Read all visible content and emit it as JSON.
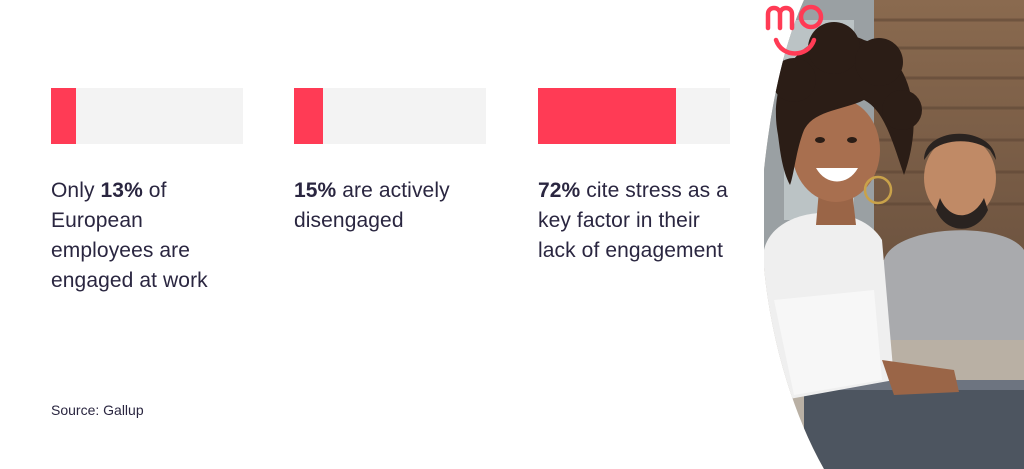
{
  "stats": [
    {
      "value": "13%",
      "fraction": 0.13,
      "prefix": "Only ",
      "suffix": " of European employees are engaged at work"
    },
    {
      "value": "15%",
      "fraction": 0.15,
      "prefix": "",
      "suffix": " are actively disengaged"
    },
    {
      "value": "72%",
      "fraction": 0.72,
      "prefix": "",
      "suffix": " cite stress as a key factor in their lack of engagement"
    }
  ],
  "source": "Source: Gallup",
  "colors": {
    "accent": "#ff3b55",
    "track": "#f3f3f3",
    "text": "#2a2640"
  },
  "icons": {
    "logo": "mo-smile-logo-icon"
  }
}
